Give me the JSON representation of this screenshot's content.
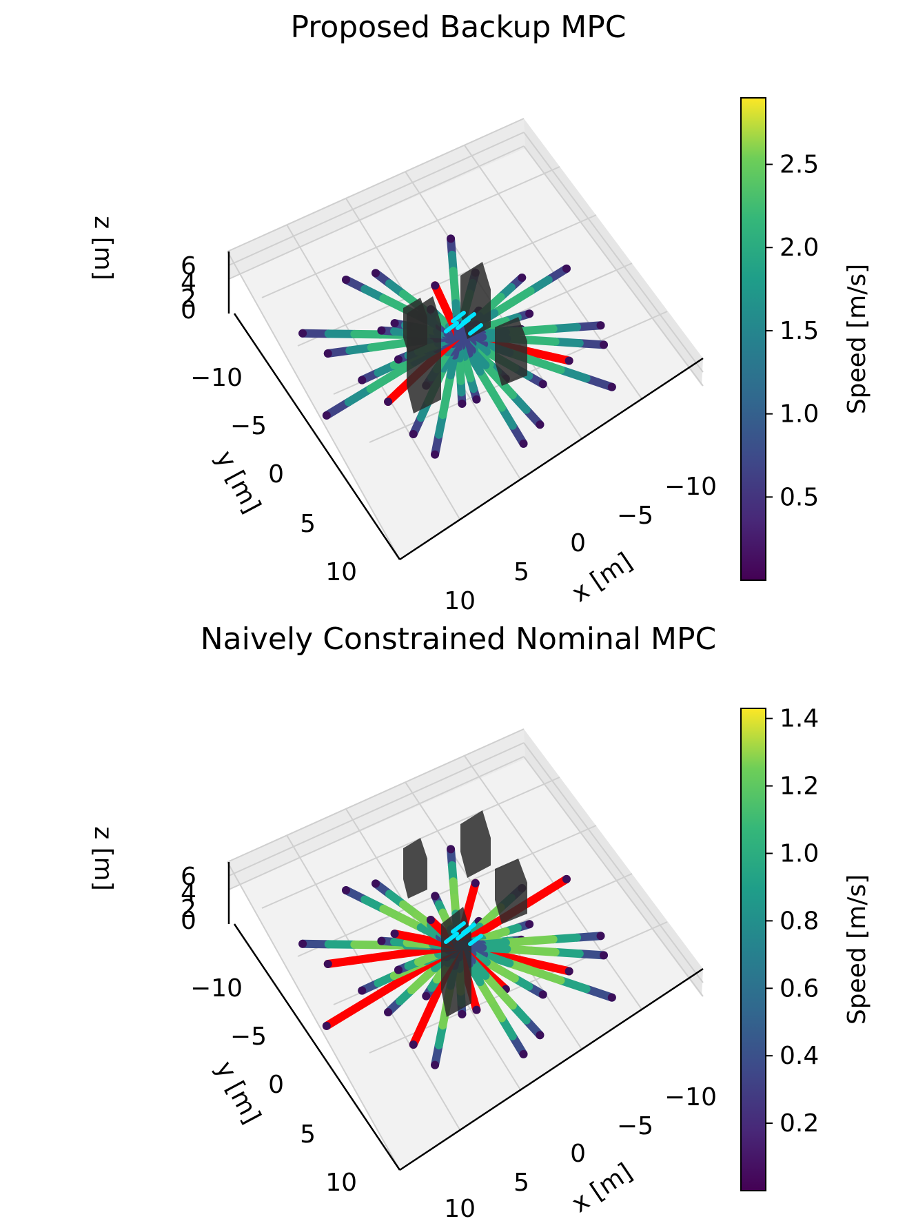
{
  "chart_data": [
    {
      "type": "3d-trajectory",
      "title": "Proposed Backup MPC",
      "xlabel": "x [m]",
      "ylabel": "y [m]",
      "zlabel": "z [m]",
      "xlim": [
        -12,
        12
      ],
      "ylim": [
        -12,
        12
      ],
      "zlim": [
        0,
        6
      ],
      "x_ticks": [
        "−10",
        "−5",
        "0",
        "5",
        "10"
      ],
      "y_ticks": [
        "−10",
        "−5",
        "0",
        "5",
        "10"
      ],
      "z_ticks": [
        "0",
        "2",
        "4",
        "6"
      ],
      "grid": true,
      "colorbar": {
        "label": "Speed [m/s]",
        "colormap": "viridis",
        "min": 0.0,
        "max": 2.9,
        "ticks": [
          "0.5",
          "1.0",
          "1.5",
          "2.0",
          "2.5"
        ],
        "tick_values": [
          0.5,
          1.0,
          1.5,
          2.0,
          2.5
        ]
      },
      "obstacles": 4,
      "trajectories": 32,
      "trajectory_speed_peak": 2.2,
      "unsafe_trajectories": 3,
      "colors": {
        "unsafe": "#ff0000",
        "goal": "#00e5ff",
        "obstacle": "#222222"
      }
    },
    {
      "type": "3d-trajectory",
      "title": "Naively Constrained Nominal MPC",
      "xlabel": "x [m]",
      "ylabel": "y [m]",
      "zlabel": "z [m]",
      "xlim": [
        -12,
        12
      ],
      "ylim": [
        -12,
        12
      ],
      "zlim": [
        0,
        6
      ],
      "x_ticks": [
        "−10",
        "−5",
        "0",
        "5",
        "10"
      ],
      "y_ticks": [
        "−10",
        "−5",
        "0",
        "5",
        "10"
      ],
      "z_ticks": [
        "0",
        "2",
        "4",
        "6"
      ],
      "grid": true,
      "colorbar": {
        "label": "Speed [m/s]",
        "colormap": "viridis",
        "min": 0.0,
        "max": 1.43,
        "ticks": [
          "0.2",
          "0.4",
          "0.6",
          "0.8",
          "1.0",
          "1.2",
          "1.4"
        ],
        "tick_values": [
          0.2,
          0.4,
          0.6,
          0.8,
          1.0,
          1.2,
          1.4
        ]
      },
      "obstacles": 4,
      "trajectories": 32,
      "trajectory_speed_peak": 1.3,
      "unsafe_trajectories": 10,
      "colors": {
        "unsafe": "#ff0000",
        "goal": "#00e5ff",
        "obstacle": "#222222"
      }
    }
  ]
}
